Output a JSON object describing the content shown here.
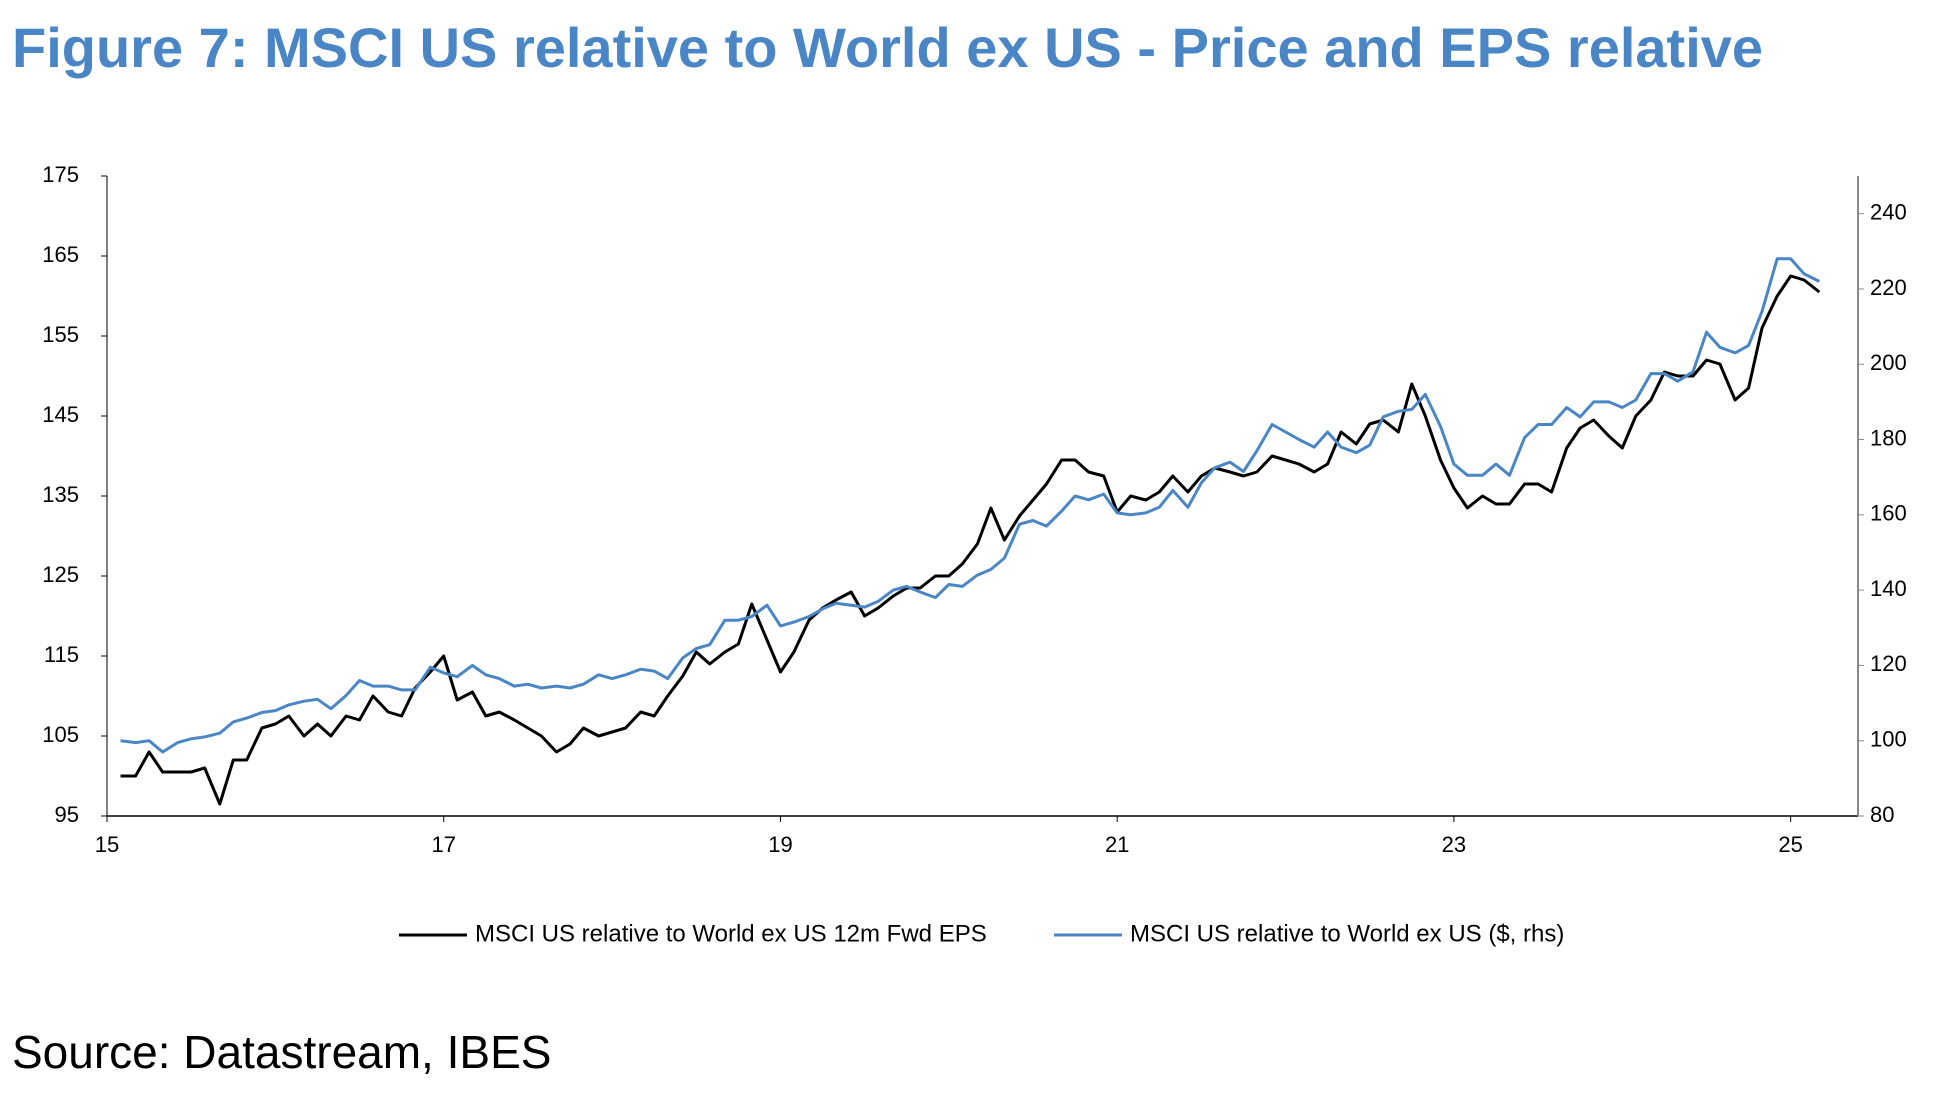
{
  "chart_data": {
    "type": "line",
    "title": "Figure 7: MSCI US relative to World ex US - Price and EPS relative",
    "source": "Source: Datastream, IBES",
    "x": [
      15.08,
      15.17,
      15.25,
      15.33,
      15.42,
      15.5,
      15.58,
      15.67,
      15.75,
      15.83,
      15.92,
      16,
      16.08,
      16.17,
      16.25,
      16.33,
      16.42,
      16.5,
      16.58,
      16.67,
      16.75,
      16.83,
      16.92,
      17,
      17.08,
      17.17,
      17.25,
      17.33,
      17.42,
      17.5,
      17.58,
      17.67,
      17.75,
      17.83,
      17.92,
      18,
      18.08,
      18.17,
      18.25,
      18.33,
      18.42,
      18.5,
      18.58,
      18.67,
      18.75,
      18.83,
      18.92,
      19,
      19.08,
      19.17,
      19.25,
      19.33,
      19.42,
      19.5,
      19.58,
      19.67,
      19.75,
      19.83,
      19.92,
      20,
      20.08,
      20.17,
      20.25,
      20.33,
      20.42,
      20.5,
      20.58,
      20.67,
      20.75,
      20.83,
      20.92,
      21,
      21.08,
      21.17,
      21.25,
      21.33,
      21.42,
      21.5,
      21.58,
      21.67,
      21.75,
      21.83,
      21.92,
      22,
      22.08,
      22.17,
      22.25,
      22.33,
      22.42,
      22.5,
      22.58,
      22.67,
      22.75,
      22.83,
      22.92,
      23,
      23.08,
      23.17,
      23.25,
      23.33,
      23.42,
      23.5,
      23.58,
      23.67,
      23.75,
      23.83,
      23.92,
      24,
      24.08,
      24.17,
      24.25,
      24.33,
      24.42,
      24.5,
      24.58,
      24.67,
      24.75,
      24.83,
      24.92,
      25,
      25.08,
      25.17
    ],
    "series": [
      {
        "name": "MSCI US relative to World ex US 12m Fwd EPS",
        "color": "#000000",
        "axis": "y",
        "values": [
          100,
          100,
          103,
          100.5,
          100.5,
          100.5,
          101,
          96.5,
          102,
          102,
          106,
          106.5,
          107.5,
          105,
          106.5,
          105,
          107.5,
          107,
          110,
          108,
          107.5,
          111,
          113,
          115,
          109.5,
          110.5,
          107.5,
          108,
          107,
          106,
          105,
          103,
          104,
          106,
          105,
          105.5,
          106,
          108,
          107.5,
          110,
          112.5,
          115.5,
          114,
          115.5,
          116.5,
          121.5,
          117,
          113,
          115.5,
          119.5,
          121,
          122,
          123,
          120,
          121,
          122.5,
          123.5,
          123.5,
          125,
          125,
          126.5,
          129,
          133.5,
          129.5,
          132.5,
          134.5,
          136.5,
          139.5,
          139.5,
          138,
          137.5,
          133,
          135,
          134.5,
          135.5,
          137.5,
          135.5,
          137.5,
          138.5,
          138,
          137.5,
          138,
          140,
          139.5,
          139,
          138,
          139,
          143,
          141.5,
          144,
          144.5,
          143,
          149,
          145,
          139.5,
          136,
          133.5,
          135,
          134,
          134,
          136.5,
          136.5,
          135.5,
          141,
          143.5,
          144.5,
          142.5,
          141,
          145,
          147,
          150.5,
          150,
          150,
          152,
          151.5,
          147,
          148.5,
          156,
          160,
          162.5,
          162,
          160.5
        ]
      },
      {
        "name": "MSCI US relative to World ex US ($, rhs)",
        "color": "#4a86c5",
        "axis": "y2",
        "values": [
          100,
          99.5,
          100,
          97,
          99.5,
          100.5,
          101,
          102,
          105,
          106,
          107.5,
          108,
          109.5,
          110.5,
          111,
          108.5,
          112,
          116,
          114.5,
          114.5,
          113.5,
          113.5,
          119.5,
          118,
          117,
          120,
          117.5,
          116.5,
          114.5,
          115,
          114,
          114.5,
          114,
          115,
          117.5,
          116.5,
          117.5,
          119,
          118.5,
          116.5,
          122,
          124.5,
          125.5,
          132,
          132,
          133,
          136,
          130.5,
          131.5,
          133,
          135,
          136.5,
          136,
          135.5,
          137,
          140,
          141,
          139.5,
          138,
          141.5,
          141,
          144,
          145.5,
          148.5,
          157.5,
          158.5,
          157,
          161,
          165,
          164,
          165.5,
          160.5,
          160,
          160.5,
          162,
          166.5,
          162,
          168.5,
          172.5,
          174,
          171.5,
          177,
          184,
          182,
          180,
          178,
          182,
          178,
          176.5,
          178.5,
          186,
          187.5,
          188,
          192,
          183.5,
          173.5,
          170.5,
          170.5,
          173.5,
          170.5,
          180.5,
          184,
          184,
          188.5,
          186,
          190,
          190,
          188.5,
          190.5,
          197.5,
          197.5,
          195.5,
          198,
          208.5,
          204.5,
          203,
          205,
          214,
          228,
          228,
          224,
          222
        ]
      }
    ],
    "xlim": [
      15,
      25.4
    ],
    "xticks": [
      15,
      17,
      19,
      21,
      23,
      25
    ],
    "ylim": [
      95,
      175
    ],
    "yticks": [
      95,
      105,
      115,
      125,
      135,
      145,
      155,
      165,
      175
    ],
    "y2lim": [
      80,
      250
    ],
    "y2ticks": [
      80,
      100,
      120,
      140,
      160,
      180,
      200,
      220,
      240
    ],
    "grid": false,
    "legend": "bottom"
  }
}
